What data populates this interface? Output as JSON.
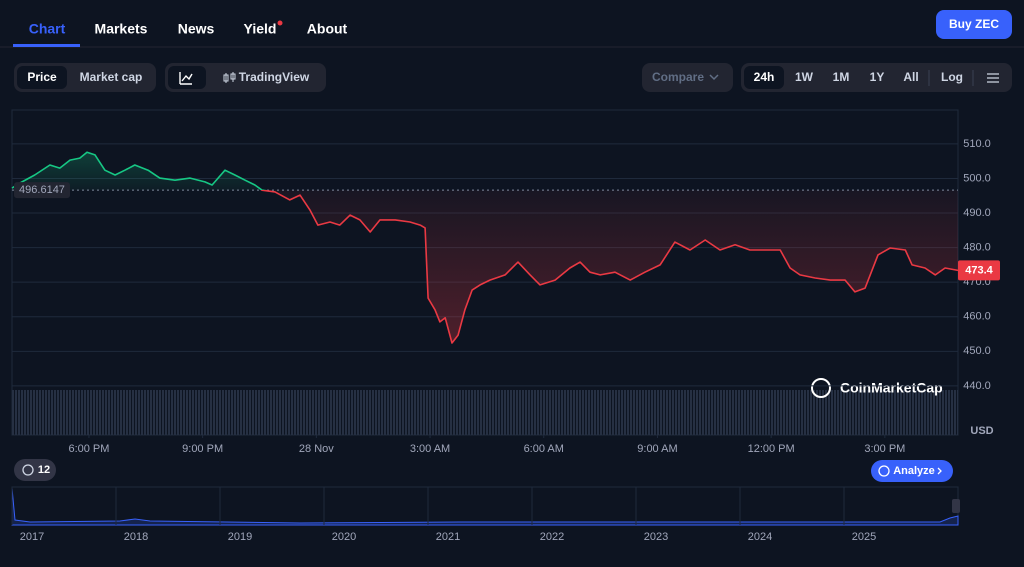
{
  "nav": {
    "tabs": [
      "Chart",
      "Markets",
      "News",
      "Yield",
      "About"
    ],
    "button": "Buy ZEC"
  },
  "toolbar": {
    "modes": [
      "Price",
      "Market cap"
    ],
    "view": "TradingView",
    "compare": "Compare",
    "ranges": [
      "24h",
      "1W",
      "1M",
      "1Y",
      "All"
    ],
    "log": "Log"
  },
  "chart_data": {
    "type": "line",
    "x": [
      -2.03,
      -1.82,
      -1.43,
      -1.03,
      -0.77,
      -0.5,
      -0.24,
      -0.05,
      0.16,
      0.42,
      0.69,
      0.95,
      1.21,
      1.56,
      1.87,
      2.27,
      2.67,
      3.06,
      3.25,
      3.59,
      3.85,
      4.12,
      4.38,
      4.57,
      4.91,
      5.3,
      5.57,
      5.83,
      6.04,
      6.36,
      6.62,
      6.89,
      7.15,
      7.42,
      7.68,
      8.08,
      8.47,
      8.74,
      8.87,
      8.95,
      9.13,
      9.26,
      9.4,
      9.58,
      9.74,
      9.92,
      10.11,
      10.32,
      10.58,
      10.98,
      11.32,
      11.64,
      11.9,
      12.3,
      12.69,
      12.96,
      13.22,
      13.49,
      13.88,
      14.28,
      14.67,
      15.07,
      15.46,
      15.86,
      16.26,
      16.65,
      17.05,
      17.44,
      17.84,
      18.24,
      18.5,
      18.76,
      19.16,
      19.56,
      19.95,
      20.21,
      20.48,
      20.82,
      21.14,
      21.54,
      21.72,
      22.06,
      22.33,
      22.59,
      22.93
    ],
    "values": [
      497.2,
      498.7,
      501,
      503.9,
      503,
      505.3,
      505.9,
      507.6,
      506.8,
      502.4,
      501,
      502.4,
      503.9,
      502.4,
      500.1,
      499.5,
      500.1,
      499,
      498.1,
      502.4,
      501,
      499.5,
      498.1,
      496.6,
      496.1,
      493.8,
      495.2,
      490.9,
      486.5,
      487.4,
      486.5,
      489.4,
      488,
      484.5,
      488,
      488,
      487.4,
      486.5,
      485.7,
      465.4,
      462,
      458.5,
      459.7,
      452.4,
      454.7,
      462,
      467.7,
      469.2,
      470.6,
      472.1,
      475.8,
      472.1,
      469.2,
      470.6,
      474.1,
      475.8,
      472.9,
      472.1,
      472.9,
      470.6,
      472.9,
      475,
      481.6,
      479.3,
      482.2,
      479.3,
      480.8,
      479.3,
      479.3,
      479.3,
      474.1,
      472.1,
      471.2,
      470.6,
      470.6,
      467.2,
      468.3,
      477.9,
      479.9,
      479.3,
      475,
      474.1,
      472.1,
      474.1,
      473.4
    ],
    "xlim": [
      -2.03,
      22.93
    ],
    "xticks": [
      {
        "value": 0,
        "label": "6:00 PM"
      },
      {
        "value": 3,
        "label": "9:00 PM"
      },
      {
        "value": 6,
        "label": "28 Nov"
      },
      {
        "value": 9,
        "label": "3:00 AM"
      },
      {
        "value": 12,
        "label": "6:00 AM"
      },
      {
        "value": 15,
        "label": "9:00 AM"
      },
      {
        "value": 18,
        "label": "12:00 PM"
      },
      {
        "value": 21,
        "label": "3:00 PM"
      }
    ],
    "ylim": [
      425.8,
      519.8
    ],
    "yticks": [
      {
        "value": 440,
        "label": "440.0"
      },
      {
        "value": 450,
        "label": "450.0"
      },
      {
        "value": 460,
        "label": "460.0"
      },
      {
        "value": 470,
        "label": "470.0"
      },
      {
        "value": 480,
        "label": "480.0"
      },
      {
        "value": 490,
        "label": "490.0"
      },
      {
        "value": 500,
        "label": "500.0"
      },
      {
        "value": 510,
        "label": "510.0"
      }
    ],
    "reference": 496.6147,
    "unit": "USD",
    "watermark": "CoinMarketCap",
    "up_color": "#16c784",
    "down_color": "#ea3943",
    "grid": true
  },
  "overview": {
    "years": [
      2017,
      2018,
      2019,
      2020,
      2021,
      2022,
      2023,
      2024,
      2025
    ],
    "history_count": 12,
    "analyze": "Analyze"
  }
}
